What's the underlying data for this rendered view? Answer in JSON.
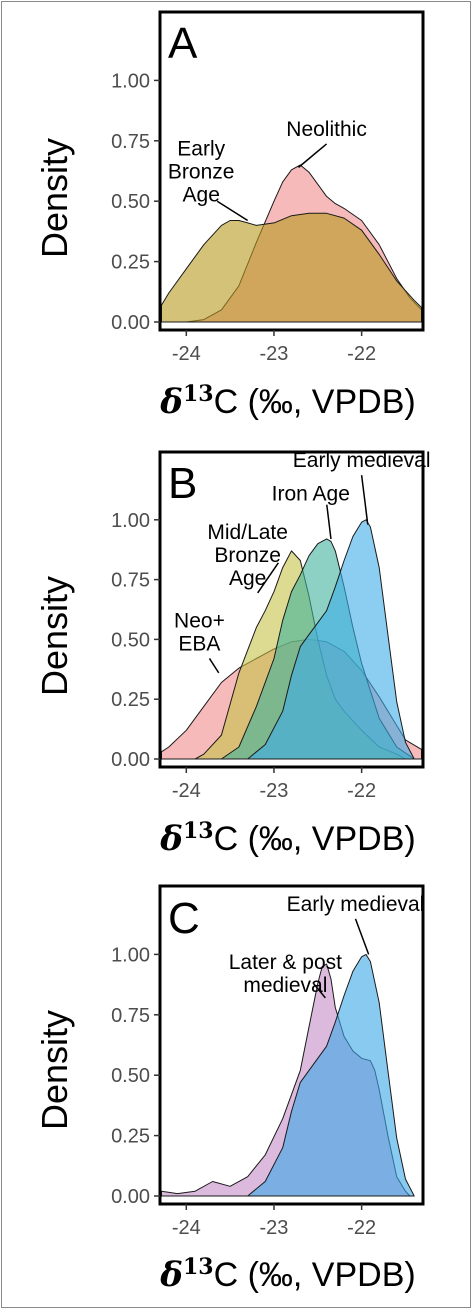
{
  "chart_data": [
    {
      "type": "area",
      "panel": "A",
      "xlabel": "δ13C (‰, VPDB)",
      "ylabel": "Density",
      "xlim": [
        -24.3,
        -21.3
      ],
      "ylim": [
        0,
        1.25
      ],
      "x_ticks": [
        -24,
        -23,
        -22
      ],
      "y_ticks": [
        0.0,
        0.25,
        0.5,
        0.75,
        1.0
      ],
      "x_tick_labels": [
        "-24",
        "-23",
        "-22"
      ],
      "y_tick_labels": [
        "0.00",
        "0.25",
        "0.50",
        "0.75",
        "1.00"
      ],
      "series": [
        {
          "name": "Neolithic",
          "color": "#f08c8c",
          "x": [
            -24.3,
            -24.0,
            -23.8,
            -23.6,
            -23.4,
            -23.2,
            -23.0,
            -22.9,
            -22.8,
            -22.7,
            -22.6,
            -22.5,
            -22.4,
            -22.3,
            -22.2,
            -22.0,
            -21.8,
            -21.6,
            -21.45,
            -21.3
          ],
          "y": [
            0.0,
            0.0,
            0.01,
            0.05,
            0.15,
            0.33,
            0.5,
            0.58,
            0.63,
            0.65,
            0.62,
            0.57,
            0.52,
            0.49,
            0.47,
            0.42,
            0.32,
            0.18,
            0.1,
            0.05
          ]
        },
        {
          "name": "Early Bronze Age",
          "color": "#b89a1e",
          "x": [
            -24.3,
            -24.2,
            -24.0,
            -23.8,
            -23.6,
            -23.5,
            -23.4,
            -23.3,
            -23.2,
            -23.0,
            -22.8,
            -22.6,
            -22.4,
            -22.2,
            -22.0,
            -21.8,
            -21.6,
            -21.4,
            -21.3
          ],
          "y": [
            0.07,
            0.12,
            0.22,
            0.32,
            0.4,
            0.42,
            0.42,
            0.41,
            0.4,
            0.41,
            0.44,
            0.45,
            0.45,
            0.43,
            0.38,
            0.28,
            0.17,
            0.09,
            0.06
          ]
        }
      ],
      "annotations": [
        {
          "text": [
            "Neolithic"
          ],
          "x": -22.4,
          "y": 0.77
        },
        {
          "text": [
            "Early",
            "Bronze",
            "Age"
          ],
          "x": -23.83,
          "y": 0.69
        }
      ]
    },
    {
      "type": "area",
      "panel": "B",
      "xlabel": "δ13C (‰, VPDB)",
      "ylabel": "Density",
      "xlim": [
        -24.3,
        -21.3
      ],
      "ylim": [
        0,
        1.25
      ],
      "x_ticks": [
        -24,
        -23,
        -22
      ],
      "y_ticks": [
        0.0,
        0.25,
        0.5,
        0.75,
        1.0
      ],
      "x_tick_labels": [
        "-24",
        "-23",
        "-22"
      ],
      "y_tick_labels": [
        "0.00",
        "0.25",
        "0.50",
        "0.75",
        "1.00"
      ],
      "series": [
        {
          "name": "Neo+ EBA",
          "color": "#f08c8c",
          "x": [
            -24.3,
            -24.2,
            -24.0,
            -23.8,
            -23.6,
            -23.4,
            -23.2,
            -23.0,
            -22.8,
            -22.6,
            -22.4,
            -22.2,
            -22.0,
            -21.8,
            -21.6,
            -21.5,
            -21.3
          ],
          "y": [
            0.03,
            0.05,
            0.12,
            0.22,
            0.32,
            0.38,
            0.42,
            0.46,
            0.49,
            0.5,
            0.49,
            0.45,
            0.37,
            0.26,
            0.14,
            0.08,
            0.04
          ]
        },
        {
          "name": "Mid/Late Bronze Age",
          "color": "#c6c24a",
          "x": [
            -23.9,
            -23.8,
            -23.6,
            -23.4,
            -23.2,
            -23.1,
            -23.0,
            -22.9,
            -22.8,
            -22.7,
            -22.6,
            -22.5,
            -22.4,
            -22.3,
            -22.2,
            -22.0,
            -21.8,
            -21.6,
            -21.5
          ],
          "y": [
            0.0,
            0.02,
            0.1,
            0.36,
            0.55,
            0.62,
            0.7,
            0.8,
            0.87,
            0.83,
            0.68,
            0.5,
            0.35,
            0.25,
            0.2,
            0.12,
            0.05,
            0.02,
            0.0
          ]
        },
        {
          "name": "Iron Age",
          "color": "#3fb39c",
          "x": [
            -23.6,
            -23.4,
            -23.2,
            -23.0,
            -22.9,
            -22.8,
            -22.7,
            -22.6,
            -22.5,
            -22.4,
            -22.35,
            -22.3,
            -22.2,
            -22.1,
            -22.0,
            -21.8,
            -21.6,
            -21.4
          ],
          "y": [
            0.0,
            0.05,
            0.22,
            0.42,
            0.58,
            0.7,
            0.77,
            0.85,
            0.9,
            0.92,
            0.91,
            0.87,
            0.72,
            0.55,
            0.4,
            0.17,
            0.05,
            0.0
          ]
        },
        {
          "name": "Early medieval",
          "color": "#3dadea",
          "x": [
            -23.3,
            -23.1,
            -22.9,
            -22.8,
            -22.7,
            -22.6,
            -22.5,
            -22.4,
            -22.3,
            -22.2,
            -22.1,
            -22.0,
            -21.95,
            -21.9,
            -21.8,
            -21.7,
            -21.6,
            -21.5,
            -21.4
          ],
          "y": [
            0.0,
            0.06,
            0.2,
            0.35,
            0.47,
            0.52,
            0.57,
            0.62,
            0.72,
            0.83,
            0.93,
            0.99,
            1.0,
            0.97,
            0.8,
            0.52,
            0.24,
            0.07,
            0.0
          ]
        }
      ],
      "annotations": [
        {
          "text": [
            "Early medieval"
          ],
          "x": -22.0,
          "y": 1.22
        },
        {
          "text": [
            "Iron Age"
          ],
          "x": -22.58,
          "y": 1.08
        },
        {
          "text": [
            "Mid/Late",
            "Bronze",
            "Age"
          ],
          "x": -23.3,
          "y": 0.92
        },
        {
          "text": [
            "Neo+",
            "EBA"
          ],
          "x": -23.85,
          "y": 0.55
        }
      ]
    },
    {
      "type": "area",
      "panel": "C",
      "xlabel": "δ13C (‰, VPDB)",
      "ylabel": "Density",
      "xlim": [
        -24.3,
        -21.3
      ],
      "ylim": [
        0,
        1.25
      ],
      "x_ticks": [
        -24,
        -23,
        -22
      ],
      "y_ticks": [
        0.0,
        0.25,
        0.5,
        0.75,
        1.0
      ],
      "x_tick_labels": [
        "-24",
        "-23",
        "-22"
      ],
      "y_tick_labels": [
        "0.00",
        "0.25",
        "0.50",
        "0.75",
        "1.00"
      ],
      "series": [
        {
          "name": "Later & post medieval",
          "color": "#c58cc6",
          "x": [
            -24.3,
            -24.1,
            -23.9,
            -23.7,
            -23.5,
            -23.3,
            -23.1,
            -22.9,
            -22.7,
            -22.6,
            -22.5,
            -22.45,
            -22.4,
            -22.35,
            -22.3,
            -22.2,
            -22.1,
            -22.0,
            -21.9,
            -21.85,
            -21.8,
            -21.7,
            -21.6,
            -21.5,
            -21.45
          ],
          "y": [
            0.02,
            0.01,
            0.02,
            0.06,
            0.04,
            0.08,
            0.17,
            0.32,
            0.52,
            0.7,
            0.88,
            0.95,
            0.96,
            0.9,
            0.78,
            0.66,
            0.6,
            0.57,
            0.56,
            0.52,
            0.44,
            0.25,
            0.08,
            0.02,
            0.0
          ]
        },
        {
          "name": "Early medieval",
          "color": "#3aa6e8",
          "x": [
            -23.3,
            -23.1,
            -22.9,
            -22.8,
            -22.7,
            -22.6,
            -22.5,
            -22.4,
            -22.3,
            -22.2,
            -22.1,
            -22.0,
            -21.95,
            -21.9,
            -21.8,
            -21.7,
            -21.6,
            -21.5,
            -21.4
          ],
          "y": [
            0.0,
            0.06,
            0.2,
            0.35,
            0.47,
            0.52,
            0.57,
            0.62,
            0.72,
            0.83,
            0.93,
            0.99,
            1.0,
            0.97,
            0.8,
            0.52,
            0.24,
            0.07,
            0.0
          ]
        }
      ],
      "annotations": [
        {
          "text": [
            "Early medieval"
          ],
          "x": -22.07,
          "y": 1.18
        },
        {
          "text": [
            "Later & post",
            "medieval"
          ],
          "x": -22.87,
          "y": 0.94
        }
      ]
    }
  ]
}
